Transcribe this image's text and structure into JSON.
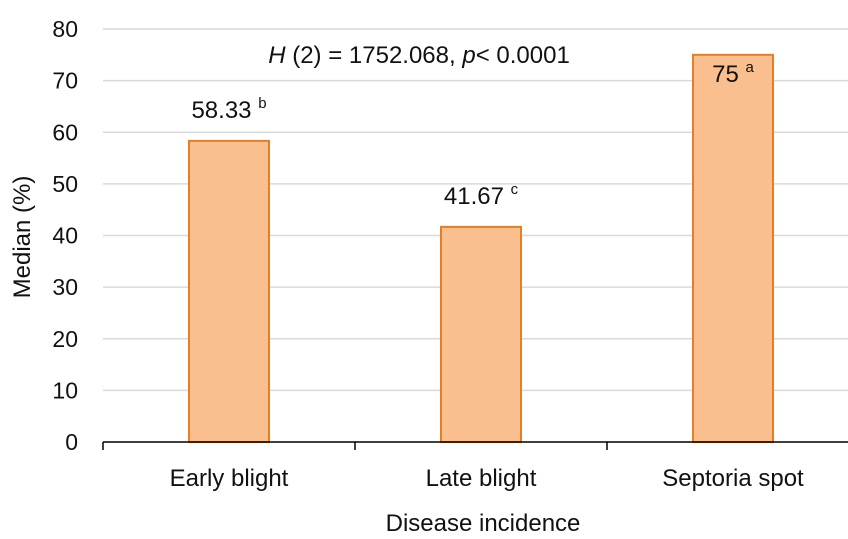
{
  "chart_data": {
    "type": "bar",
    "categories": [
      "Early blight",
      "Late blight",
      "Septoria spot"
    ],
    "values": [
      58.33,
      41.67,
      75
    ],
    "data_labels": [
      "58.33",
      "41.67",
      "75"
    ],
    "significance_letters": [
      "b",
      "c",
      "a"
    ],
    "xlabel": "Disease incidence",
    "ylabel": "Median (%)",
    "ylim": [
      0,
      80
    ],
    "yticks": [
      0,
      10,
      20,
      30,
      40,
      50,
      60,
      70,
      80
    ],
    "annotation": {
      "H": "H",
      "df": " (2) = 1752.068, ",
      "p": "p",
      "rest": "< 0.0001"
    },
    "grid": true,
    "colors": {
      "bar_fill": "#f9bf8f",
      "bar_stroke": "#e67e22",
      "grid": "#d9d9d9",
      "axis": "#000000"
    }
  }
}
